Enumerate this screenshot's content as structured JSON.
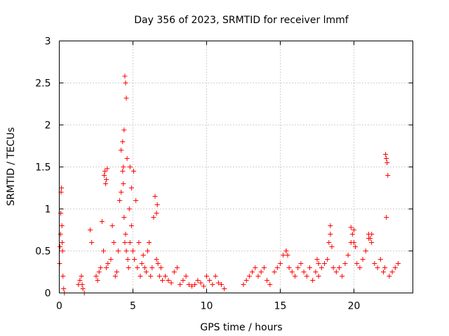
{
  "chart_data": {
    "type": "scatter",
    "title": "Day 356 of 2023, SRMTID for receiver lmmf",
    "xlabel": "GPS time / hours",
    "ylabel": "SRMTID / TECUs",
    "xlim": [
      0,
      24
    ],
    "ylim": [
      0,
      3
    ],
    "xticks": [
      0,
      5,
      10,
      15,
      20
    ],
    "yticks": [
      0,
      0.5,
      1,
      1.5,
      2,
      2.5,
      3
    ],
    "xtick_labels": [
      "0",
      "5",
      "10",
      "15",
      "20"
    ],
    "ytick_labels": [
      "0",
      "0.5",
      "1",
      "1.5",
      "2",
      "2.5",
      "3"
    ],
    "grid": true,
    "marker": "+",
    "marker_color": "#ff0000",
    "series": [
      {
        "name": "SRMTID lmmf",
        "x": [
          0.02,
          0.05,
          0.08,
          0.1,
          0.12,
          0.15,
          0.18,
          0.2,
          0.22,
          0.25,
          0.3,
          0.35,
          1.3,
          1.4,
          1.5,
          1.55,
          1.6,
          1.7,
          2.1,
          2.2,
          2.5,
          2.6,
          2.7,
          2.8,
          2.9,
          3.0,
          3.05,
          3.1,
          3.15,
          3.2,
          3.3,
          3.5,
          3.6,
          3.7,
          3.8,
          3.9,
          4.0,
          4.1,
          4.2,
          4.3,
          4.35,
          4.4,
          4.45,
          4.5,
          4.55,
          4.6,
          4.65,
          4.7,
          4.75,
          4.8,
          4.9,
          5.0,
          5.1,
          5.2,
          5.3,
          5.4,
          5.5,
          5.6,
          5.7,
          5.8,
          5.9,
          6.0,
          6.1,
          6.2,
          6.3,
          6.4,
          6.5,
          6.6,
          6.7,
          6.8,
          6.9,
          7.0,
          7.2,
          7.4,
          7.6,
          7.8,
          8.0,
          8.2,
          8.4,
          8.6,
          8.8,
          9.0,
          9.2,
          9.4,
          9.6,
          9.8,
          10.0,
          10.2,
          10.4,
          10.6,
          10.8,
          11.0,
          11.2,
          12.5,
          12.7,
          12.9,
          13.1,
          13.3,
          13.5,
          13.7,
          13.9,
          14.1,
          14.3,
          14.6,
          14.8,
          15.0,
          15.2,
          15.4,
          15.6,
          15.8,
          16.0,
          16.2,
          16.4,
          16.6,
          16.8,
          17.0,
          17.2,
          17.4,
          17.6,
          17.8,
          18.0,
          18.2,
          18.4,
          18.6,
          18.8,
          19.0,
          19.2,
          19.4,
          19.6,
          19.8,
          20.0,
          20.2,
          20.4,
          20.6,
          20.8,
          21.0,
          21.2,
          21.4,
          21.6,
          21.8,
          22.0,
          22.1,
          22.2,
          22.3,
          22.4,
          22.6,
          22.8,
          23.0,
          4.45,
          4.5,
          4.55,
          4.4,
          4.35,
          4.3,
          3.25,
          3.2,
          4.2,
          4.8,
          4.9,
          5.05,
          6.65,
          6.6,
          19.8,
          19.9,
          20.0,
          20.1,
          18.3,
          18.4,
          18.5,
          21.0,
          21.1,
          21.2,
          22.15,
          22.2,
          22.25,
          15.4,
          15.5,
          17.5,
          17.6
        ],
        "y": [
          0.35,
          0.55,
          0.7,
          0.95,
          1.2,
          1.25,
          0.8,
          0.6,
          0.5,
          0.2,
          0.05,
          0.0,
          0.1,
          0.15,
          0.2,
          0.1,
          0.05,
          0.0,
          0.75,
          0.6,
          0.2,
          0.15,
          0.25,
          0.3,
          0.85,
          0.5,
          1.4,
          1.45,
          1.3,
          0.3,
          0.35,
          0.4,
          0.8,
          0.6,
          0.2,
          0.25,
          0.5,
          1.1,
          1.7,
          1.8,
          1.3,
          0.9,
          0.6,
          0.7,
          0.5,
          1.6,
          0.4,
          0.3,
          1.0,
          0.6,
          0.8,
          0.5,
          0.4,
          1.1,
          0.3,
          0.6,
          0.2,
          0.35,
          0.45,
          0.3,
          0.25,
          0.5,
          0.6,
          0.2,
          0.3,
          0.9,
          1.15,
          0.4,
          0.35,
          0.2,
          0.3,
          0.15,
          0.2,
          0.15,
          0.12,
          0.25,
          0.3,
          0.1,
          0.15,
          0.2,
          0.1,
          0.08,
          0.1,
          0.15,
          0.12,
          0.08,
          0.2,
          0.15,
          0.1,
          0.2,
          0.12,
          0.1,
          0.05,
          0.1,
          0.15,
          0.2,
          0.25,
          0.3,
          0.2,
          0.25,
          0.3,
          0.15,
          0.1,
          0.25,
          0.3,
          0.35,
          0.45,
          0.5,
          0.3,
          0.25,
          0.2,
          0.3,
          0.35,
          0.25,
          0.2,
          0.3,
          0.15,
          0.25,
          0.2,
          0.3,
          0.35,
          0.4,
          0.7,
          0.3,
          0.25,
          0.3,
          0.2,
          0.35,
          0.45,
          0.6,
          0.75,
          0.35,
          0.3,
          0.4,
          0.5,
          0.65,
          0.7,
          0.35,
          0.3,
          0.4,
          0.25,
          0.3,
          0.9,
          1.4,
          0.2,
          0.25,
          0.3,
          0.35,
          2.58,
          2.5,
          2.32,
          1.94,
          1.5,
          1.45,
          1.48,
          1.35,
          1.2,
          1.5,
          1.25,
          1.45,
          1.05,
          0.95,
          0.78,
          0.7,
          0.6,
          0.55,
          0.6,
          0.8,
          0.55,
          0.7,
          0.65,
          0.6,
          1.65,
          1.6,
          1.55,
          0.5,
          0.45,
          0.4,
          0.35
        ]
      }
    ]
  }
}
